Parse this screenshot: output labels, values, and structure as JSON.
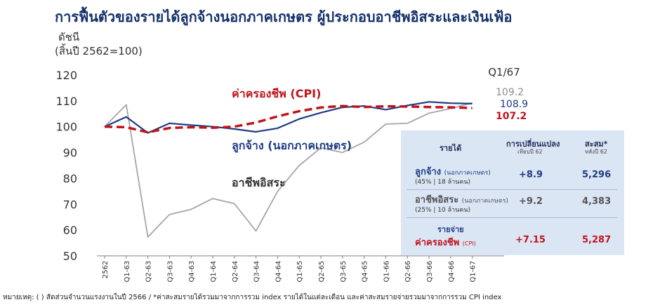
{
  "title": "การฟื้นตัวของรายได้ลูกจ้างนอกภาคเกษตร ผู้ประกอบอาชีพอิสระและเงินเฟ้อ",
  "ylabel_line1": "ดัชนี",
  "ylabel_line2": "(สิ้นปี 2562=100)",
  "chart_data": {
    "type": "line",
    "categories": [
      "2562",
      "Q1-63",
      "Q2-63",
      "Q3-63",
      "Q4-63",
      "Q1-64",
      "Q2-64",
      "Q3-64",
      "Q4-64",
      "Q1-65",
      "Q2-65",
      "Q3-65",
      "Q4-65",
      "Q1-66",
      "Q2-66",
      "Q3-66",
      "Q4-66",
      "Q1-67"
    ],
    "ylim": [
      50,
      120
    ],
    "yticks": [
      50,
      60,
      70,
      80,
      90,
      100,
      110,
      120
    ],
    "series": [
      {
        "name": "ค่าครองชีพ (CPI)",
        "color": "#c0141b",
        "dashed": true,
        "values": [
          100,
          99.8,
          97.8,
          99.5,
          99.8,
          99.6,
          100.0,
          101.6,
          104.0,
          106.0,
          107.4,
          108.0,
          107.6,
          107.9,
          107.8,
          107.6,
          107.5,
          107.2
        ]
      },
      {
        "name": "ลูกจ้าง (นอกภาคเกษตร)",
        "color": "#1f3b82",
        "dashed": false,
        "values": [
          100,
          103.8,
          97.6,
          101.3,
          100.6,
          100.0,
          99.1,
          98.0,
          99.4,
          103.0,
          105.4,
          107.5,
          108.0,
          106.6,
          108.2,
          109.6,
          109.1,
          108.9
        ]
      },
      {
        "name": "อาชีพอิสระ",
        "color": "#a6a6a6",
        "dashed": false,
        "values": [
          100,
          108.5,
          57.3,
          66.0,
          68.0,
          72.2,
          70.2,
          59.6,
          75.0,
          85.0,
          91.8,
          90.0,
          94.0,
          101.0,
          101.3,
          105.2,
          107.0,
          109.2
        ]
      }
    ],
    "period_label": "Q1/67",
    "end_labels": [
      "109.2",
      "108.9",
      "107.2"
    ]
  },
  "table": {
    "col_income": "รายได้",
    "col_change": "การเปลี่ยนแปลง",
    "col_change_sub": "เทียบปี 62",
    "col_cum": "สะสม*",
    "col_cum_sub": "หลังปี 62",
    "rows": [
      {
        "name": "ลูกจ้าง",
        "tag": "(นอกภาคเกษตร)",
        "detail": "(45% | 18 ล้านคน)",
        "change": "+8.9",
        "cum": "5,296"
      },
      {
        "name": "อาชีพอิสระ",
        "tag": "(นอกภาคเกษตร)",
        "detail": "(25% | 10 ล้านคน)",
        "change": "+9.2",
        "cum": "4,383"
      }
    ],
    "expense_header": "รายจ่าย",
    "expense": {
      "name": "ค่าครองชีพ",
      "tag": "(CPI)",
      "change": "+7.15",
      "cum": "5,287"
    }
  },
  "footnote": "หมายเหตุ: ( ) สัดส่วนจำนวนแรงงานในปี 2566 / *ค่าสะสมรายได้รวมมาจากการรวม index รายได้ในแต่ละเดือน และค่าสะสมรายจ่ายรวมมาจากการรวม CPI index"
}
